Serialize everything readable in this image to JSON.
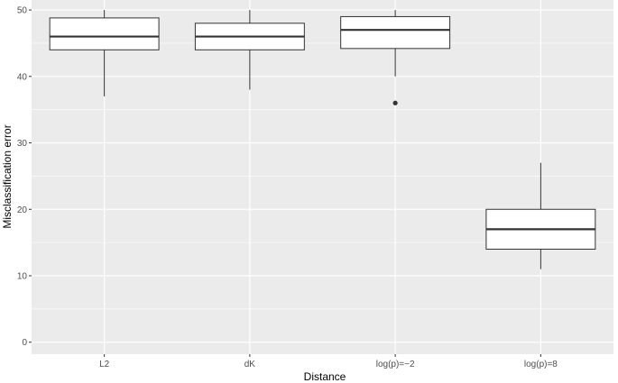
{
  "chart_data": {
    "type": "box",
    "title": "",
    "xlabel": "Distance",
    "ylabel": "Misclassification error",
    "ylim": [
      -1.8,
      51.5
    ],
    "yticks": [
      0,
      10,
      20,
      30,
      40,
      50
    ],
    "categories": [
      "L2",
      "dK",
      "log(p)=−2",
      "log(p)=8"
    ],
    "boxes": [
      {
        "category": "L2",
        "whisker_low": 37,
        "q1": 44,
        "median": 46,
        "q3": 48.8,
        "whisker_high": 50,
        "outliers": []
      },
      {
        "category": "dK",
        "whisker_low": 38,
        "q1": 44,
        "median": 46,
        "q3": 48,
        "whisker_high": 50,
        "outliers": []
      },
      {
        "category": "log(p)=−2",
        "whisker_low": 40,
        "q1": 44.2,
        "median": 47,
        "q3": 49,
        "whisker_high": 50,
        "outliers": [
          36
        ]
      },
      {
        "category": "log(p)=8",
        "whisker_low": 11,
        "q1": 14,
        "median": 17,
        "q3": 20,
        "whisker_high": 27,
        "outliers": []
      }
    ],
    "grid": true,
    "colors": {
      "panel": "#ebebeb",
      "grid": "#ffffff",
      "box_fill": "#ffffff",
      "box_line": "#333333"
    }
  }
}
